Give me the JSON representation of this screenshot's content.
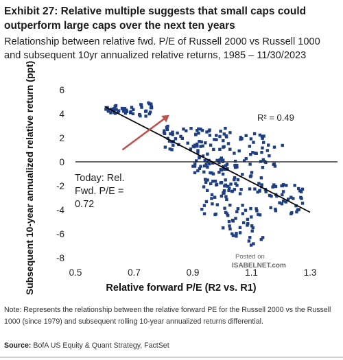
{
  "header": {
    "title": "Exhibit 27: Relative multiple suggests that small caps could outperform large caps over the next ten years",
    "subtitle": "Relationship between relative fwd. P/E of Russell 2000 vs Russell 1000 and subsequent 10yr annualized relative returns, 1985 – 11/30/2023"
  },
  "chart_data": {
    "type": "scatter",
    "title": "",
    "xlabel": "Relative forward  P/E (R2 vs. R1)",
    "ylabel": "Subsequent 10-year annualized relative return (ppt)",
    "xlim": [
      0.5,
      1.3
    ],
    "ylim": [
      -8,
      6
    ],
    "x_ticks": [
      0.5,
      0.7,
      0.9,
      1.1,
      1.3
    ],
    "x_tick_labels": [
      "0.5",
      "0.7",
      "0.9",
      "1.1",
      "1.3"
    ],
    "y_ticks": [
      6,
      4,
      2,
      0,
      -2,
      -4,
      -6,
      -8
    ],
    "y_tick_labels": [
      "6",
      "4",
      "2",
      "0",
      "-2",
      "-4",
      "-6",
      "-8"
    ],
    "grid": false,
    "marker_color": "#1f3f82",
    "trendline": {
      "x": [
        0.6,
        1.3
      ],
      "y": [
        4.6,
        -4.2
      ],
      "color": "#000000"
    },
    "r_squared_label": "R² = 0.49",
    "annotation": {
      "lines": [
        "Today: Rel.",
        "Fwd. P/E =",
        "0.72"
      ],
      "arrow_color": "#c0504d",
      "arrow_from": [
        0.66,
        1.0
      ],
      "arrow_to": [
        0.82,
        3.9
      ]
    },
    "watermark_lines": [
      "Posted on",
      "ISABELNET.com"
    ],
    "clusters": [
      {
        "x": [
          0.6,
          0.67
        ],
        "y": [
          4.0,
          4.7
        ],
        "n": 22
      },
      {
        "x": [
          0.66,
          0.76
        ],
        "y": [
          3.7,
          5.0
        ],
        "n": 26
      },
      {
        "x": [
          0.8,
          0.92
        ],
        "y": [
          1.0,
          3.0
        ],
        "n": 32
      },
      {
        "x": [
          0.9,
          1.02
        ],
        "y": [
          -1.0,
          2.8
        ],
        "n": 55
      },
      {
        "x": [
          0.93,
          1.0
        ],
        "y": [
          -2.0,
          0.2
        ],
        "n": 18
      },
      {
        "x": [
          1.0,
          1.15
        ],
        "y": [
          -2.5,
          2.5
        ],
        "n": 65
      },
      {
        "x": [
          0.93,
          1.08
        ],
        "y": [
          -4.8,
          -1.5
        ],
        "n": 35
      },
      {
        "x": [
          1.0,
          1.12
        ],
        "y": [
          -6.2,
          -3.8
        ],
        "n": 30
      },
      {
        "x": [
          1.08,
          1.14
        ],
        "y": [
          -7.0,
          -5.5
        ],
        "n": 6
      },
      {
        "x": [
          1.12,
          1.28
        ],
        "y": [
          -4.5,
          -1.8
        ],
        "n": 45
      },
      {
        "x": [
          1.13,
          1.22
        ],
        "y": [
          -0.5,
          2.0
        ],
        "n": 10
      }
    ]
  },
  "footer": {
    "note": "Note: Represents the relationship between the relative forward PE for the Russell 2000 vs the Russell 1000 (since 1979) and subsequent rolling 10-year annualized returns differential.",
    "source_label": "Source:",
    "source_text": " BofA US Equity & Quant Strategy, FactSet"
  }
}
